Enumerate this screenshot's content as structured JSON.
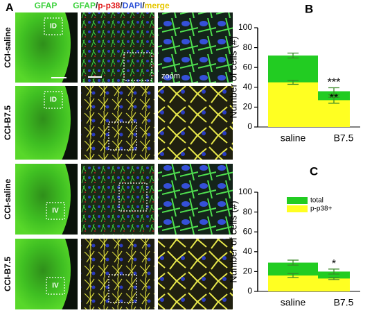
{
  "figure": {
    "panel_a": "A",
    "col1_header": "GFAP",
    "col2_header": [
      {
        "text": "GFAP",
        "color": "#3ad13a"
      },
      {
        "text": "/",
        "color": "#222222"
      },
      {
        "text": "p-p38",
        "color": "#e01818"
      },
      {
        "text": "/",
        "color": "#222222"
      },
      {
        "text": "DAPI",
        "color": "#2a4fd6"
      },
      {
        "text": "/",
        "color": "#222222"
      },
      {
        "text": "merge",
        "color": "#e6c700"
      }
    ],
    "rows": [
      {
        "label": "CCI-saline",
        "box": "ID"
      },
      {
        "label": "CCI-B7.5",
        "box": "ID"
      },
      {
        "label": "CCI-saline",
        "box": "IV"
      },
      {
        "label": "CCI-B7.5",
        "box": "IV"
      }
    ],
    "zoom": "zoom"
  },
  "chart_data": [
    {
      "type": "bar",
      "panel": "B",
      "ylabel": "Number of cells (#)",
      "categories": [
        "saline",
        "B7.5"
      ],
      "series": [
        {
          "color": "#22cc22",
          "values": [
            72,
            36
          ],
          "errors": [
            2.5,
            3.5
          ]
        },
        {
          "color": "#ffff22",
          "values": [
            45,
            27
          ],
          "errors": [
            2,
            3
          ]
        }
      ],
      "annotations": [
        {
          "text": "***",
          "series": 0,
          "index": 1
        },
        {
          "text": "**",
          "series": 1,
          "index": 1
        }
      ],
      "ylim": [
        0,
        100
      ],
      "yticks": [
        0,
        20,
        40,
        60,
        80,
        100
      ]
    },
    {
      "type": "bar",
      "panel": "C",
      "ylabel": "Number of cells (#)",
      "categories": [
        "saline",
        "B7.5"
      ],
      "series": [
        {
          "name": "total",
          "color": "#22cc22",
          "values": [
            29,
            20
          ],
          "errors": [
            2.5,
            2.5
          ]
        },
        {
          "name": "p-p38+",
          "color": "#ffff22",
          "values": [
            16,
            13
          ],
          "errors": [
            2,
            1
          ]
        }
      ],
      "annotations": [
        {
          "text": "*",
          "series": 0,
          "index": 1
        }
      ],
      "legend": "upper left",
      "ylim": [
        0,
        100
      ],
      "yticks": [
        0,
        20,
        40,
        60,
        80,
        100
      ]
    }
  ]
}
